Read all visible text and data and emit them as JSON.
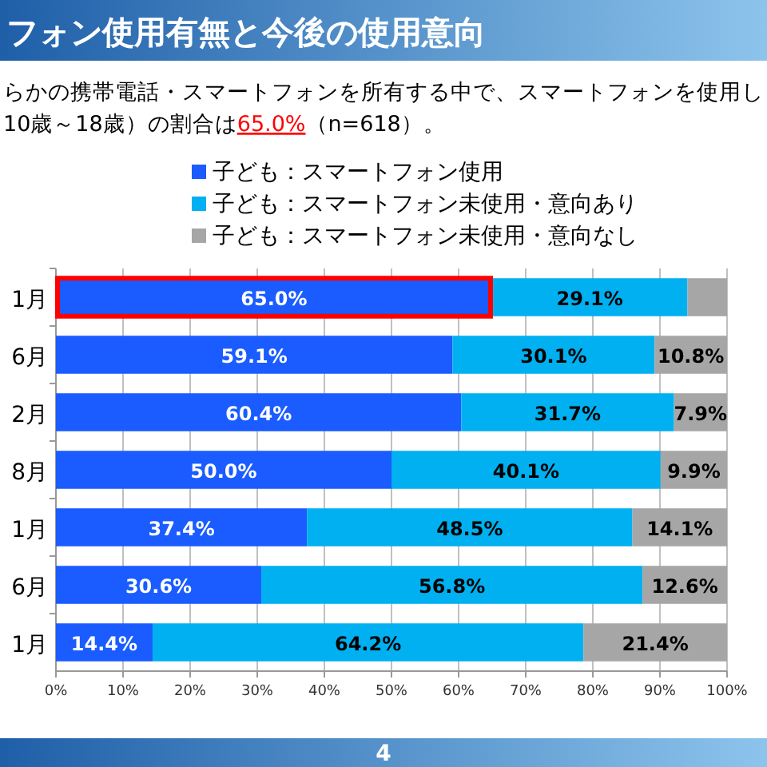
{
  "chart_data": {
    "type": "bar",
    "orientation": "horizontal",
    "stacked": true,
    "title": "フォン使用有無と今後の使用意向",
    "subtitle": "らかの携帯電話・スマートフォンを所有する中で、スマートフォンを使用し\n10歳～18歳）の割合は**65.0%**（n=618）。",
    "categories": [
      "1月",
      "6月",
      "2月",
      "8月",
      "1月",
      "6月",
      "1月"
    ],
    "xlim": [
      0,
      100
    ],
    "xticks": [
      {
        "value": 0,
        "label": "0%"
      },
      {
        "value": 10,
        "label": "10%"
      },
      {
        "value": 20,
        "label": "20%"
      },
      {
        "value": 30,
        "label": "30%"
      },
      {
        "value": 40,
        "label": "40%"
      },
      {
        "value": 50,
        "label": "50%"
      },
      {
        "value": 60,
        "label": "60%"
      },
      {
        "value": 70,
        "label": "70%"
      },
      {
        "value": 80,
        "label": "80%"
      },
      {
        "value": 90,
        "label": "90%"
      },
      {
        "value": 100,
        "label": "100%"
      }
    ],
    "grid": "x",
    "legend": "top",
    "annotations": [
      "4"
    ],
    "series": [
      {
        "name": "子ども：スマートフォン使用",
        "color": "#1a5cff",
        "values": [
          65.0,
          59.1,
          60.4,
          50.0,
          37.4,
          30.6,
          14.4
        ],
        "value_labels": [
          "65.0%",
          "59.1%",
          "60.4%",
          "50.0%",
          "37.4%",
          "30.6%",
          "14.4%"
        ]
      },
      {
        "name": "子ども：スマートフォン未使用・意向あり",
        "color": "#00b0f0",
        "values": [
          29.1,
          30.1,
          31.7,
          40.1,
          48.5,
          56.8,
          64.2
        ],
        "value_labels": [
          "29.1%",
          "30.1%",
          "31.7%",
          "40.1%",
          "48.5%",
          "56.8%",
          "64.2%"
        ]
      },
      {
        "name": "子ども：スマートフォン未使用・意向なし",
        "color": "#a6a6a6",
        "values": [
          5.9,
          10.8,
          7.9,
          9.9,
          14.1,
          12.6,
          21.4
        ],
        "value_labels": [
          null,
          "10.8%",
          "7.9%",
          "9.9%",
          "14.1%",
          "12.6%",
          "21.4%"
        ]
      }
    ]
  }
}
